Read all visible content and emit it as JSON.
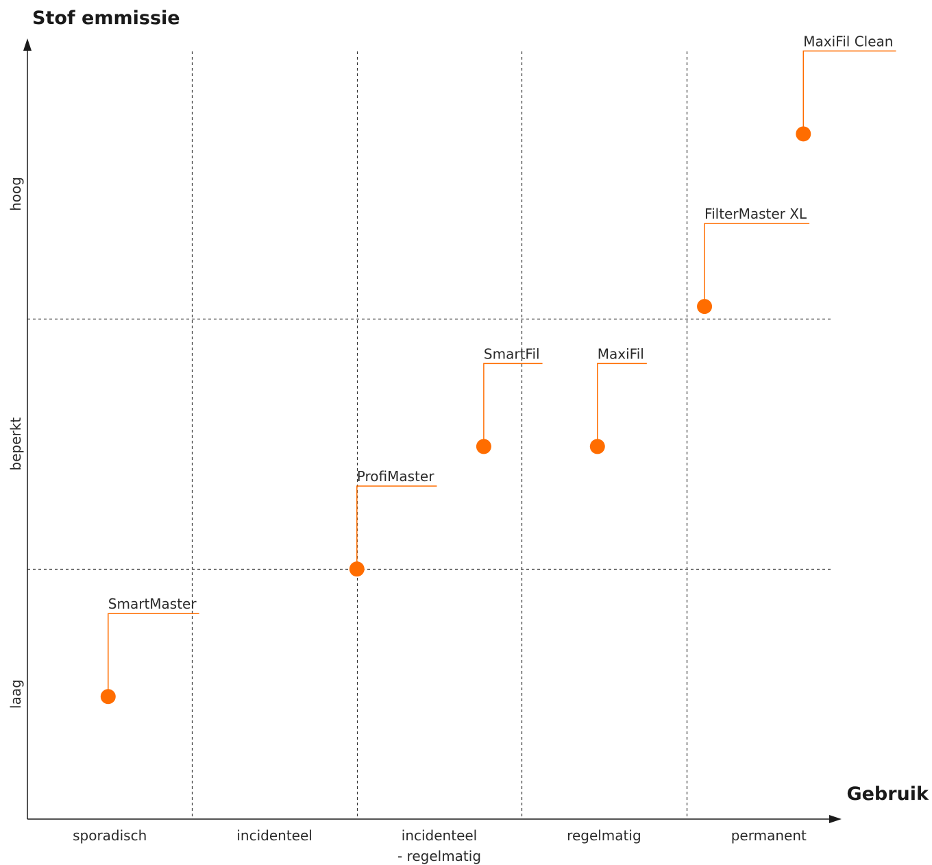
{
  "chart_data": {
    "type": "scatter",
    "title": "Stof emmissie",
    "xlabel": "Gebruik",
    "ylabel": "Stof emmissie",
    "x_categories": [
      [
        "sporadisch"
      ],
      [
        "incidenteel"
      ],
      [
        "incidenteel",
        "- regelmatig"
      ],
      [
        "regelmatig"
      ],
      [
        "permanent"
      ]
    ],
    "y_categories": [
      "laag",
      "beperkt",
      "hoog"
    ],
    "xlim": [
      0,
      5
    ],
    "ylim": [
      0,
      3.07
    ],
    "grid": true,
    "accent_color": "#ff6d00",
    "points": [
      {
        "name": "SmartMaster",
        "x": 0.49,
        "y": 0.49
      },
      {
        "name": "ProfiMaster",
        "x": 2.0,
        "y": 1.0
      },
      {
        "name": "SmartFil",
        "x": 2.77,
        "y": 1.49
      },
      {
        "name": "MaxiFil",
        "x": 3.46,
        "y": 1.49
      },
      {
        "name": "FilterMaster XL",
        "x": 4.11,
        "y": 2.05
      },
      {
        "name": "MaxiFil Clean",
        "x": 4.71,
        "y": 2.74
      }
    ]
  }
}
